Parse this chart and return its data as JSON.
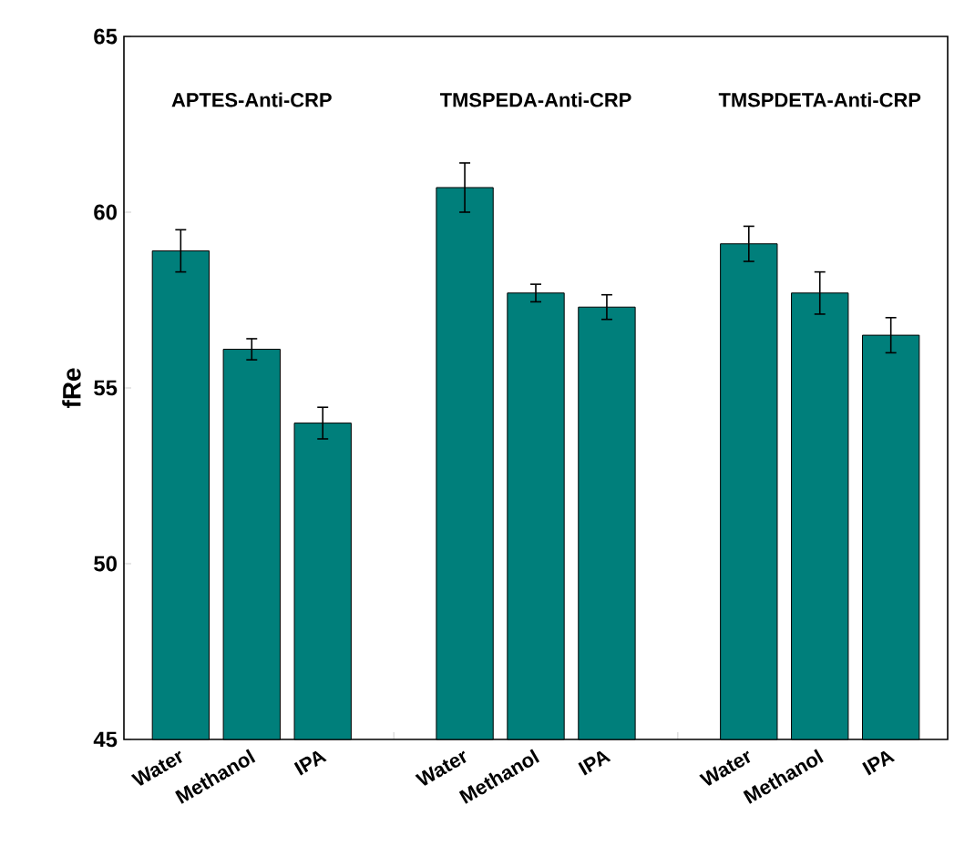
{
  "chart_data": {
    "type": "bar",
    "ylabel": "fRe",
    "categories": [
      "Water",
      "Methanol",
      "IPA",
      null,
      "Water",
      "Methanol",
      "IPA",
      null,
      "Water",
      "Methanol",
      "IPA"
    ],
    "values": [
      58.9,
      56.1,
      54.0,
      null,
      60.7,
      57.7,
      57.3,
      null,
      59.1,
      57.7,
      56.5
    ],
    "errors": [
      0.6,
      0.3,
      0.45,
      null,
      0.7,
      0.25,
      0.35,
      null,
      0.5,
      0.6,
      0.5
    ],
    "color": "#007f7b",
    "ylim": [
      45,
      65
    ],
    "yticks": [
      45,
      50,
      55,
      60,
      65
    ],
    "annotations": [
      "APTES-Anti-CRP",
      "TMSPEDA-Anti-CRP",
      "TMSPDETA-Anti-CRP"
    ]
  }
}
